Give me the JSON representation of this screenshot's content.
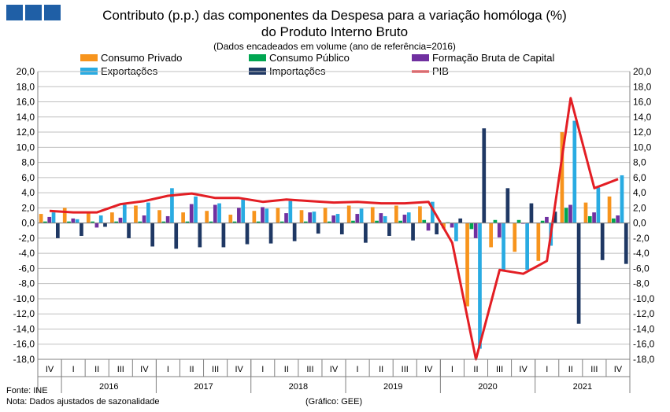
{
  "header": {
    "title_line1": "Contributo (p.p.) das componentes da Despesa para a variação homóloga (%)",
    "title_line2": "do Produto Interno Bruto",
    "subtitle": "(Dados encadeados em volume  (ano de referência=2016)"
  },
  "footer": {
    "source": "Fonte:  INE",
    "note": "Nota: Dados ajustados de sazonalidade",
    "credit": "(Gráfico: GEE)"
  },
  "colors": {
    "logo": "#1f5fa6",
    "consumo_privado": "#f7941d",
    "consumo_publico": "#00a651",
    "fbc": "#7030a0",
    "exportacoes": "#29abe2",
    "importacoes": "#1f3864",
    "pib": "#e31e24",
    "grid": "#bfbfbf"
  },
  "chart_data": {
    "type": "bar",
    "quarter_labels": [
      "IV",
      "I",
      "II",
      "III",
      "IV",
      "I",
      "II",
      "III",
      "IV",
      "I",
      "II",
      "III",
      "IV",
      "I",
      "II",
      "III",
      "IV",
      "I",
      "II",
      "III",
      "IV",
      "I",
      "II",
      "III",
      "IV"
    ],
    "year_labels": [
      "2016",
      "2017",
      "2018",
      "2019",
      "2020",
      "2021"
    ],
    "ylim": [
      -18,
      20
    ],
    "yticks": [
      "20,0",
      "18,0",
      "16,0",
      "14,0",
      "12,0",
      "10,0",
      "8,0",
      "6,0",
      "4,0",
      "2,0",
      "0,0",
      "-2,0",
      "-4,0",
      "-6,0",
      "-8,0",
      "-10,0",
      "-12,0",
      "-14,0",
      "-16,0",
      "-18,0"
    ],
    "yticks_right": [
      "20,0",
      "18,0",
      "16,0",
      "14,0",
      "12,0",
      "10,0",
      "8,0",
      "6,0",
      "4,0",
      "2,0",
      "0,0",
      "-2,0",
      "-4,0",
      "-6,0",
      "-8,0",
      "-10,0",
      "-12,0",
      "-14,0",
      "-16,0",
      "-18,0"
    ],
    "series": [
      {
        "name": "Consumo Privado",
        "type": "bar",
        "color": "#f7941d",
        "values": [
          1.2,
          2.0,
          1.3,
          1.4,
          2.3,
          1.7,
          1.4,
          1.6,
          1.1,
          1.6,
          2.0,
          1.7,
          2.0,
          2.3,
          2.1,
          2.3,
          2.2,
          -0.7,
          -11.0,
          -3.2,
          -3.8,
          -5.0,
          12.0,
          2.7,
          3.5
        ]
      },
      {
        "name": "Consumo Público",
        "type": "bar",
        "color": "#00a651",
        "values": [
          0.2,
          0.2,
          0.2,
          0.2,
          0.2,
          0.2,
          0.2,
          0.2,
          0.2,
          0.2,
          0.2,
          0.2,
          0.2,
          0.3,
          0.3,
          0.3,
          0.4,
          0.1,
          -0.8,
          0.4,
          0.4,
          0.3,
          2.0,
          0.9,
          0.6
        ]
      },
      {
        "name": "Formação Bruta de Capital",
        "type": "bar",
        "color": "#7030a0",
        "values": [
          0.8,
          0.6,
          -0.6,
          0.7,
          1.0,
          0.9,
          2.5,
          2.4,
          2.0,
          2.1,
          1.3,
          1.4,
          1.0,
          1.2,
          1.3,
          1.1,
          -1.0,
          -0.6,
          -2.0,
          -1.9,
          -0.1,
          0.8,
          2.4,
          1.4,
          1.0
        ]
      },
      {
        "name": "Exportações",
        "type": "bar",
        "color": "#29abe2",
        "values": [
          1.4,
          0.5,
          1.0,
          2.4,
          2.7,
          4.6,
          3.5,
          2.6,
          3.1,
          1.9,
          2.9,
          1.5,
          1.2,
          1.9,
          0.9,
          1.4,
          2.8,
          -2.4,
          -16.6,
          -6.2,
          -6.2,
          -3.0,
          13.5,
          4.7,
          6.3
        ]
      },
      {
        "name": "Importações",
        "type": "bar",
        "color": "#1f3864",
        "values": [
          -2.0,
          -1.7,
          -0.5,
          -2.0,
          -3.1,
          -3.4,
          -3.2,
          -3.2,
          -2.8,
          -2.7,
          -2.4,
          -1.4,
          -1.5,
          -2.6,
          -1.7,
          -2.3,
          -1.5,
          0.6,
          12.5,
          4.6,
          2.6,
          1.5,
          -13.3,
          -4.9,
          -5.4
        ]
      },
      {
        "name": "PIB",
        "type": "line",
        "color": "#e31e24",
        "values": [
          1.6,
          1.4,
          1.4,
          2.5,
          2.9,
          3.6,
          3.9,
          3.3,
          3.3,
          2.8,
          3.1,
          2.9,
          2.7,
          2.8,
          2.6,
          2.6,
          2.8,
          -2.6,
          -18.0,
          -6.2,
          -6.7,
          -5.0,
          16.5,
          4.6,
          5.8
        ]
      }
    ]
  }
}
